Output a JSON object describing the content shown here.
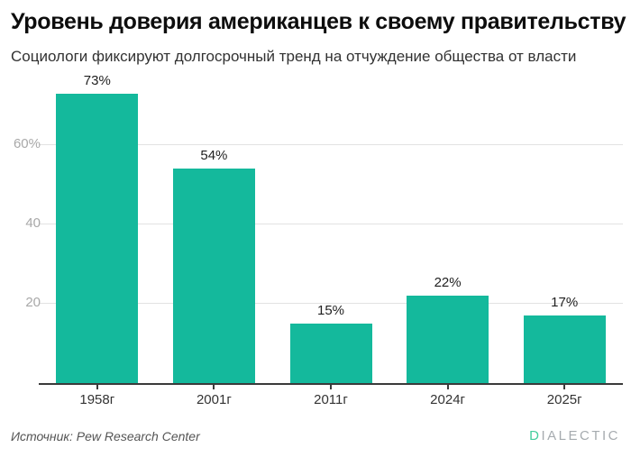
{
  "chart_data": {
    "type": "bar",
    "title": "Уровень доверия американцев к своему правительству",
    "subtitle": "Социологи фиксируют долгосрочный тренд на отчуждение общества от власти",
    "categories": [
      "1958г",
      "2001г",
      "2011г",
      "2024г",
      "2025г"
    ],
    "values": [
      73,
      54,
      15,
      22,
      17
    ],
    "value_labels": [
      "73%",
      "54%",
      "15%",
      "22%",
      "17%"
    ],
    "xlabel": "",
    "ylabel": "",
    "ylim": [
      0,
      77
    ],
    "y_ticks": [
      {
        "value": 20,
        "label": "20"
      },
      {
        "value": 40,
        "label": "40"
      },
      {
        "value": 60,
        "label": "60%"
      }
    ],
    "grid": true,
    "legend": false,
    "bar_color": "#14b99c"
  },
  "footer": {
    "source": "Источник: Pew Research Center",
    "logo": {
      "first_letter": "D",
      "rest": "IALECTIC"
    }
  },
  "colors": {
    "bg": "#ffffff",
    "bar": "#14b99c",
    "axis": "#3b3b3b",
    "gridline": "#e2e2e2",
    "y_tick_label": "#a8a8a8",
    "x_tick_label": "#333333",
    "value_label": "#1f1f1f",
    "title": "#0d0d0d",
    "subtitle": "#323232",
    "source": "#555555",
    "logo_first": "#44cd9d",
    "logo_rest": "#a6abaf"
  }
}
